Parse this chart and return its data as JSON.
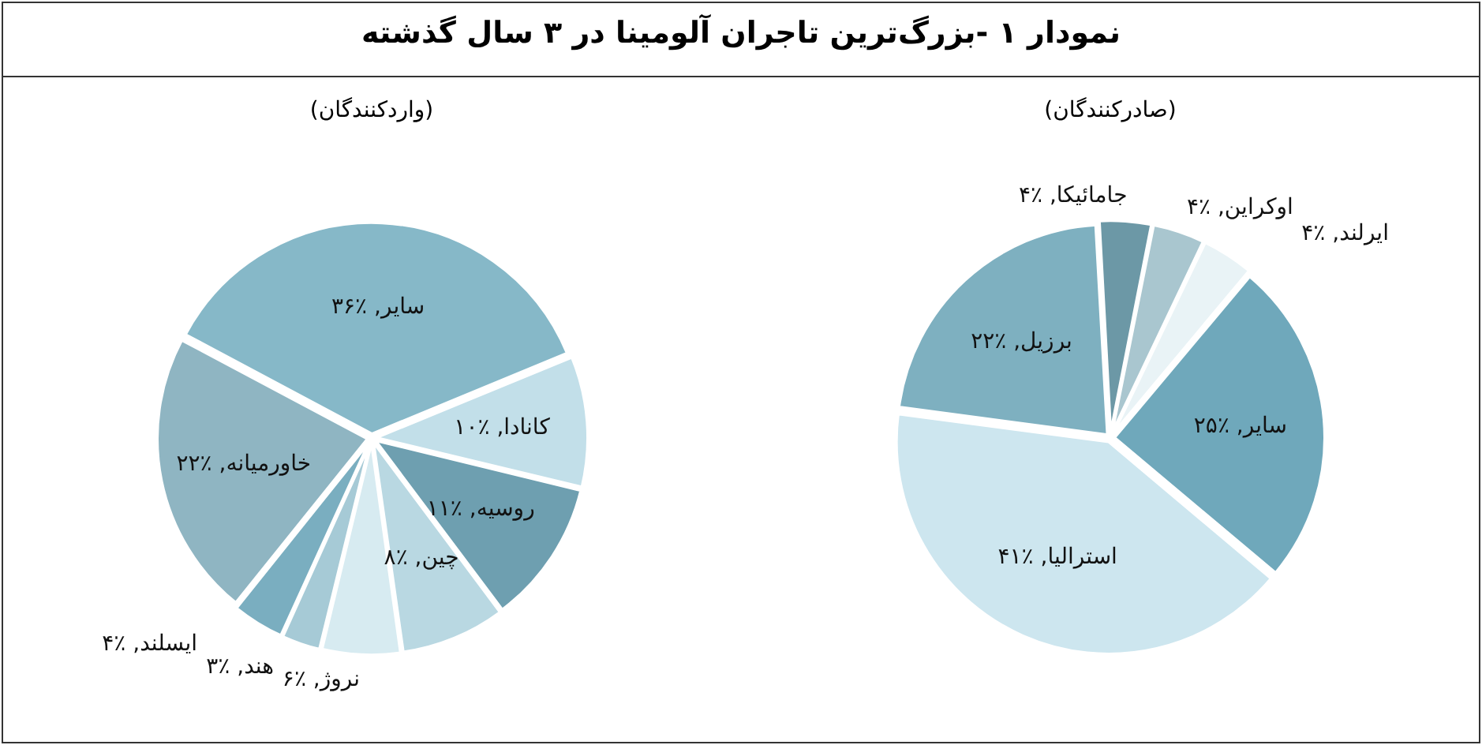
{
  "chart_data": [
    {
      "type": "pie",
      "title": "نمودار ۱ -بزرگ‌ترین تاجران آلومینا در ۳ سال گذشته",
      "subtitle": "(صادرکنندگان)",
      "categories": [
        "سایر",
        "استرالیا",
        "برزیل",
        "جامائیکا",
        "اوکراین",
        "ایرلند"
      ],
      "values": [
        25,
        41,
        22,
        4,
        4,
        4
      ],
      "value_labels": [
        "٪۲۵",
        "٪۴۱",
        "٪۲۲",
        "٪۴",
        "٪۴",
        "٪۴"
      ],
      "colors": [
        "#6fa8bb",
        "#cde6ef",
        "#7eb0c0",
        "#6c98a6",
        "#a9c6cf",
        "#e9f3f6"
      ]
    },
    {
      "type": "pie",
      "subtitle": "(واردکنندگان)",
      "categories": [
        "سایر",
        "کانادا",
        "روسیه",
        "چین",
        "نروژ",
        "هند",
        "ایسلند",
        "خاورمیانه"
      ],
      "values": [
        36,
        10,
        11,
        8,
        6,
        3,
        4,
        22
      ],
      "value_labels": [
        "٪۳۶",
        "٪۱۰",
        "٪۱۱",
        "٪۸",
        "٪۶",
        "٪۳",
        "٪۴",
        "٪۲۲"
      ],
      "colors": [
        "#86b8c8",
        "#c2dfe9",
        "#6e9fb0",
        "#b9d8e2",
        "#d7ebf1",
        "#a6cad6",
        "#7aaec0",
        "#8fb5c2"
      ]
    }
  ]
}
